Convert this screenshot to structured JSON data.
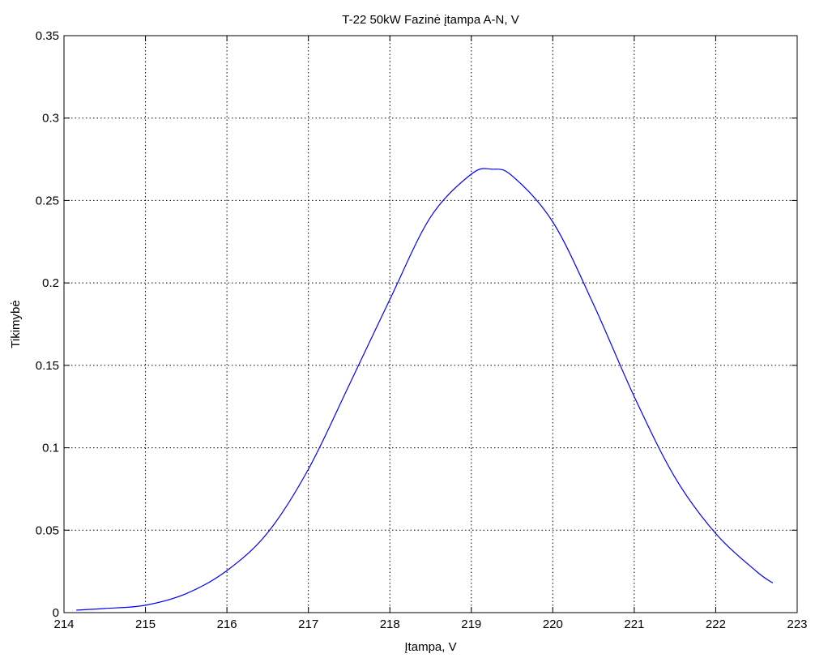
{
  "chart_data": {
    "type": "line",
    "title": "T-22 50kW Fazinė įtampa A-N, V",
    "xlabel": "Įtampa, V",
    "ylabel": "Tikimybė",
    "xlim": [
      214,
      223
    ],
    "ylim": [
      0,
      0.35
    ],
    "xticks": [
      "214",
      "215",
      "216",
      "217",
      "218",
      "219",
      "220",
      "221",
      "222",
      "223"
    ],
    "yticks": [
      "0",
      "0.05",
      "0.1",
      "0.15",
      "0.2",
      "0.25",
      "0.3",
      "0.35"
    ],
    "grid": true,
    "line_color": "#0000ff",
    "series": [
      {
        "x": [
          214.15,
          214.5,
          215.0,
          215.5,
          216.0,
          216.5,
          217.0,
          217.5,
          218.0,
          218.5,
          219.0,
          219.25,
          219.5,
          220.0,
          220.5,
          221.0,
          221.5,
          222.0,
          222.5,
          222.7
        ],
        "y": [
          0.0015,
          0.0025,
          0.0045,
          0.0115,
          0.0255,
          0.0485,
          0.087,
          0.138,
          0.19,
          0.24,
          0.266,
          0.269,
          0.265,
          0.237,
          0.187,
          0.131,
          0.082,
          0.048,
          0.025,
          0.018
        ]
      }
    ]
  }
}
